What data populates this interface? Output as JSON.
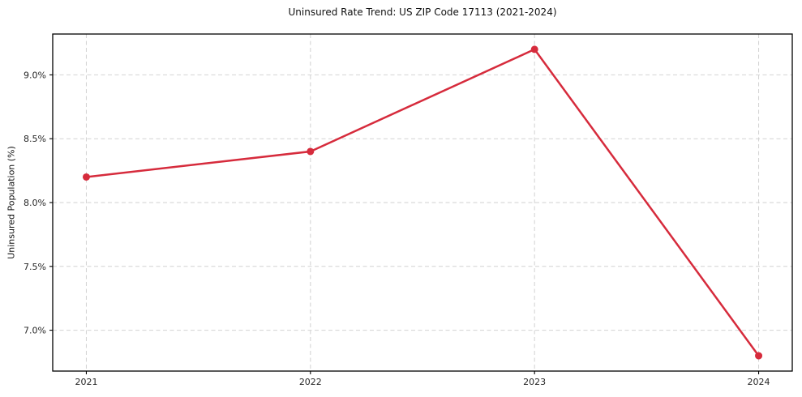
{
  "chart_data": {
    "type": "line",
    "title": "Uninsured Rate Trend: US ZIP Code 17113 (2021-2024)",
    "xlabel": "",
    "ylabel": "Uninsured Population (%)",
    "x": [
      2021,
      2022,
      2023,
      2024
    ],
    "x_tick_labels": [
      "2021",
      "2022",
      "2023",
      "2024"
    ],
    "series": [
      {
        "name": "Uninsured Rate",
        "values": [
          8.2,
          8.4,
          9.2,
          6.8
        ]
      }
    ],
    "y_tick_values": [
      7.0,
      7.5,
      8.0,
      8.5,
      9.0
    ],
    "y_tick_labels": [
      "7.0%",
      "7.5%",
      "8.0%",
      "8.5%",
      "9.0%"
    ],
    "xlim": [
      2020.85,
      2024.15
    ],
    "ylim": [
      6.68,
      9.32
    ],
    "grid": true,
    "grid_style": "dashed",
    "legend": false,
    "colors": {
      "line": "#d62b3c",
      "marker": "#d62b3c",
      "grid": "#d2d2d2",
      "spine": "#000000",
      "tick_text": "#262626",
      "background": "#ffffff"
    }
  }
}
